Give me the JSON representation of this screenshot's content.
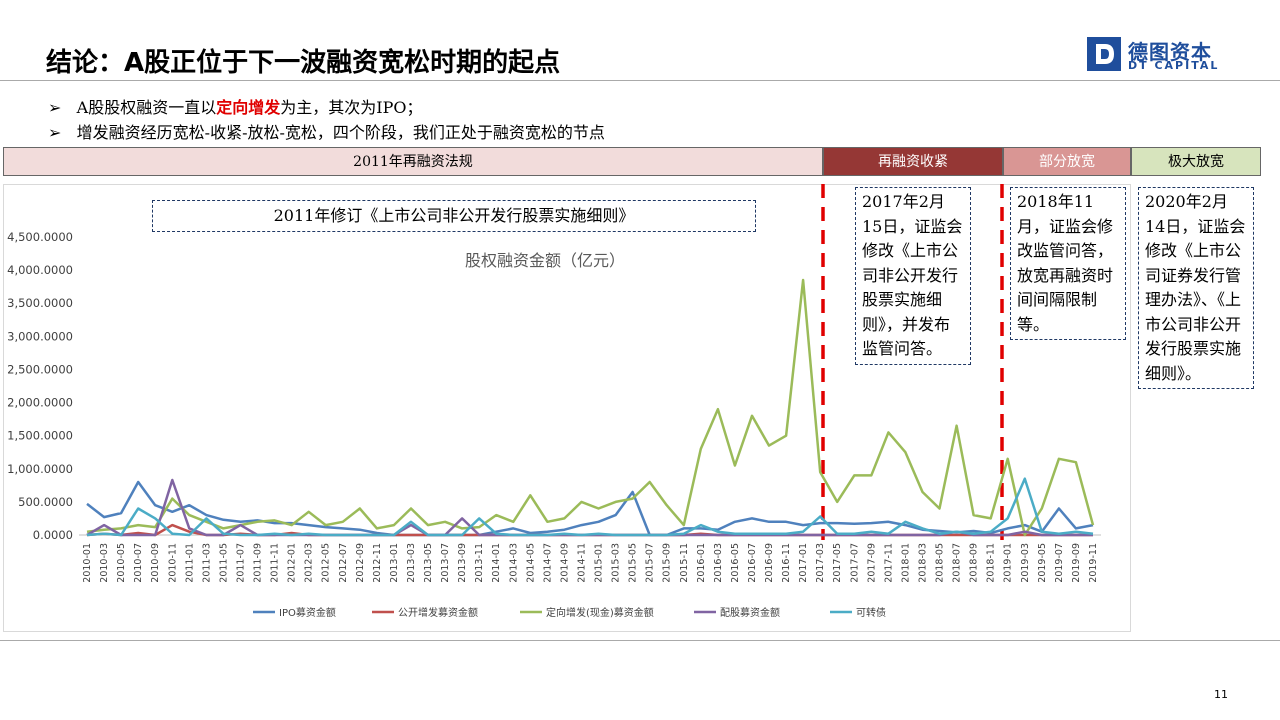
{
  "header": {
    "title": "结论：A股正位于下一波融资宽松时期的起点",
    "logo_cn": "德图资本",
    "logo_en": "DT CAPITAL"
  },
  "bullets": [
    [
      "A股股权融资一直以",
      "定向增发",
      "为主，其次为IPO；"
    ],
    [
      "增发融资经历宽松-收紧-放松-宽松，四个阶段，我们正处于融资宽松的节点"
    ]
  ],
  "phases": [
    "2011年再融资法规",
    "再融资收紧",
    "部分放宽",
    "极大放宽"
  ],
  "notes": [
    "2011年修订《上市公司非公开发行股票实施细则》",
    "2017年2月15日，证监会修改《上市公司非公开发行股票实施细则》，并发布监管问答。",
    "2018年11月，证监会修改监管问答，放宽再融资时间间隔限制等。",
    "2020年2月14日，证监会修改《上市公司证券发行管理办法》、《上市公司非公开发行股票实施细则》。"
  ],
  "page_number": "11",
  "chart_data": {
    "type": "line",
    "title": "股权融资金额（亿元）",
    "categories": [
      "2010-01",
      "2010-03",
      "2010-05",
      "2010-07",
      "2010-09",
      "2010-11",
      "2011-01",
      "2011-03",
      "2011-05",
      "2011-07",
      "2011-09",
      "2011-11",
      "2012-01",
      "2012-03",
      "2012-05",
      "2012-07",
      "2012-09",
      "2012-11",
      "2013-01",
      "2013-03",
      "2013-05",
      "2013-07",
      "2013-09",
      "2013-11",
      "2014-01",
      "2014-03",
      "2014-05",
      "2014-07",
      "2014-09",
      "2014-11",
      "2015-01",
      "2015-03",
      "2015-05",
      "2015-07",
      "2015-09",
      "2015-11",
      "2016-01",
      "2016-03",
      "2016-05",
      "2016-07",
      "2016-09",
      "2016-11",
      "2017-01",
      "2017-03",
      "2017-05",
      "2017-07",
      "2017-09",
      "2017-11",
      "2018-01",
      "2018-03",
      "2018-05",
      "2018-07",
      "2018-09",
      "2018-11",
      "2019-01",
      "2019-03",
      "2019-05",
      "2019-07",
      "2019-09",
      "2019-11"
    ],
    "series": [
      {
        "name": "IPO募资金额",
        "color": "#4f81bd",
        "values": [
          470,
          270,
          330,
          800,
          450,
          350,
          450,
          300,
          230,
          200,
          220,
          180,
          180,
          150,
          120,
          100,
          80,
          30,
          0,
          0,
          0,
          0,
          0,
          0,
          50,
          100,
          30,
          50,
          80,
          150,
          200,
          300,
          650,
          0,
          0,
          100,
          100,
          80,
          200,
          250,
          200,
          200,
          150,
          180,
          180,
          170,
          180,
          200,
          150,
          80,
          60,
          40,
          60,
          30,
          100,
          150,
          50,
          400,
          100,
          150
        ]
      },
      {
        "name": "公开增发募资金额",
        "color": "#c0504d",
        "values": [
          0,
          20,
          0,
          30,
          0,
          150,
          50,
          0,
          0,
          20,
          0,
          0,
          30,
          0,
          0,
          0,
          0,
          0,
          0,
          0,
          0,
          0,
          0,
          0,
          0,
          0,
          0,
          0,
          0,
          0,
          0,
          0,
          0,
          0,
          0,
          0,
          20,
          0,
          0,
          0,
          0,
          0,
          0,
          0,
          0,
          0,
          0,
          0,
          0,
          0,
          0,
          0,
          0,
          0,
          0,
          0,
          0,
          0,
          0,
          0
        ]
      },
      {
        "name": "定向增发(现金)募资金额",
        "color": "#9bbb59",
        "values": [
          50,
          80,
          100,
          150,
          120,
          550,
          300,
          200,
          100,
          150,
          200,
          220,
          150,
          350,
          150,
          200,
          400,
          100,
          150,
          400,
          150,
          200,
          100,
          120,
          300,
          200,
          600,
          200,
          250,
          500,
          400,
          500,
          550,
          800,
          450,
          150,
          1300,
          1900,
          1050,
          1800,
          1350,
          1500,
          3850,
          950,
          500,
          900,
          900,
          1550,
          1250,
          650,
          400,
          1650,
          300,
          250,
          1150,
          0,
          400,
          1150,
          1100,
          150
        ]
      },
      {
        "name": "配股募资金额",
        "color": "#8064a2",
        "values": [
          0,
          150,
          0,
          0,
          0,
          830,
          100,
          0,
          0,
          150,
          0,
          0,
          0,
          0,
          0,
          0,
          0,
          0,
          0,
          150,
          0,
          0,
          250,
          0,
          0,
          0,
          0,
          0,
          0,
          0,
          0,
          0,
          0,
          0,
          0,
          0,
          0,
          0,
          0,
          0,
          0,
          0,
          0,
          0,
          0,
          0,
          0,
          0,
          0,
          0,
          0,
          50,
          0,
          0,
          0,
          50,
          0,
          0,
          0,
          0
        ]
      },
      {
        "name": "可转债",
        "color": "#4bacc6",
        "values": [
          0,
          20,
          0,
          400,
          250,
          20,
          0,
          250,
          20,
          0,
          0,
          20,
          0,
          20,
          0,
          0,
          0,
          0,
          0,
          200,
          0,
          0,
          0,
          250,
          20,
          0,
          0,
          0,
          20,
          0,
          20,
          0,
          0,
          0,
          0,
          20,
          150,
          50,
          20,
          20,
          20,
          20,
          50,
          280,
          20,
          20,
          50,
          20,
          200,
          100,
          20,
          50,
          20,
          50,
          250,
          850,
          50,
          20,
          50,
          20
        ]
      }
    ],
    "ylim": [
      0,
      4500
    ],
    "yticks": [
      {
        "value": 0,
        "label": "0.0000"
      },
      {
        "value": 500,
        "label": "500.0000"
      },
      {
        "value": 1000,
        "label": "1,000.0000"
      },
      {
        "value": 1500,
        "label": "1,500.0000"
      },
      {
        "value": 2000,
        "label": "2,000.0000"
      },
      {
        "value": 2500,
        "label": "2,500.0000"
      },
      {
        "value": 3000,
        "label": "3,000.0000"
      },
      {
        "value": 3500,
        "label": "3,500.0000"
      },
      {
        "value": 4000,
        "label": "4,000.0000"
      },
      {
        "value": 4500,
        "label": "4,500.0000"
      }
    ],
    "grid": false
  }
}
